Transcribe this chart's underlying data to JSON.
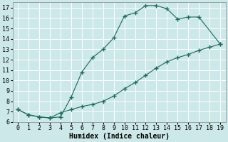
{
  "xlabel": "Humidex (Indice chaleur)",
  "bg_color": "#cce8e8",
  "grid_color": "#ffffff",
  "line_color": "#1a6b5a",
  "xlim": [
    -0.5,
    19.5
  ],
  "ylim": [
    6,
    17.5
  ],
  "xticks": [
    0,
    1,
    2,
    3,
    4,
    5,
    6,
    7,
    8,
    9,
    10,
    11,
    12,
    13,
    14,
    15,
    16,
    17,
    18,
    19
  ],
  "yticks": [
    6,
    7,
    8,
    9,
    10,
    11,
    12,
    13,
    14,
    15,
    16,
    17
  ],
  "curve1_x": [
    0,
    1,
    2,
    3,
    4,
    5,
    6,
    7,
    8,
    9,
    10,
    11,
    12,
    13,
    14,
    15,
    16,
    17,
    19
  ],
  "curve1_y": [
    7.2,
    6.7,
    6.5,
    6.4,
    6.5,
    8.4,
    10.8,
    12.2,
    13.0,
    14.1,
    16.2,
    16.5,
    17.2,
    17.2,
    16.9,
    15.9,
    16.1,
    16.1,
    13.5
  ],
  "curve2_x": [
    0,
    1,
    2,
    3,
    4,
    5,
    6,
    7,
    8,
    9,
    10,
    11,
    12,
    13,
    14,
    15,
    16,
    17,
    18,
    19
  ],
  "curve2_y": [
    7.2,
    6.7,
    6.5,
    6.4,
    6.9,
    7.2,
    7.5,
    7.7,
    8.0,
    8.5,
    9.2,
    9.8,
    10.5,
    11.2,
    11.8,
    12.2,
    12.5,
    12.9,
    13.2,
    13.5
  ],
  "font_family": "monospace",
  "tick_fontsize": 6,
  "xlabel_fontsize": 7
}
